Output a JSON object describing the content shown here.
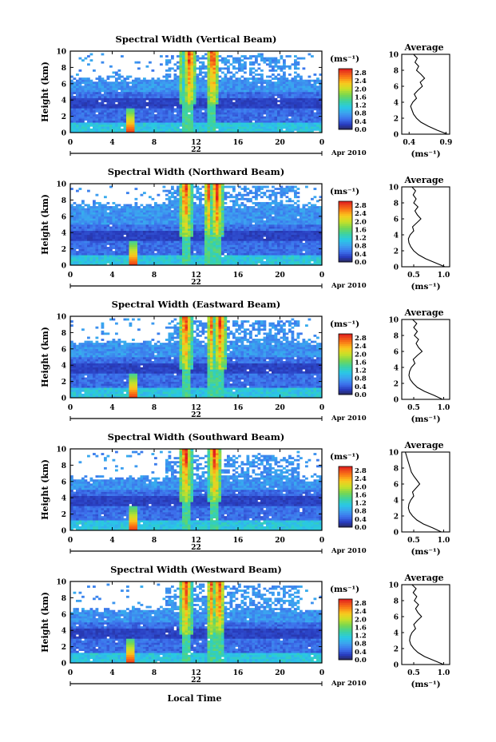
{
  "figure": {
    "date_label": "Apr 2010",
    "day_label": "22",
    "bottom_xlabel": "Local Time",
    "main_ylabel": "Height (km)",
    "colorbar_unit": "(ms⁻¹)",
    "profile_title": "Average",
    "profile_xlabel": "(ms⁻¹)"
  },
  "chart_data": [
    {
      "type": "heatmap",
      "title": "Spectral Width (Vertical Beam)",
      "xlabel": "Local Time",
      "ylabel": "Height (km)",
      "xlim": [
        0,
        24
      ],
      "ylim": [
        0,
        10
      ],
      "xticks": [
        "0",
        "4",
        "8",
        "12",
        "16",
        "20",
        "0"
      ],
      "yticks": [
        "0",
        "2",
        "4",
        "6",
        "8",
        "10"
      ],
      "colorbar": {
        "unit": "(ms⁻¹)",
        "ticks": [
          "2.8",
          "2.4",
          "2.0",
          "1.6",
          "1.2",
          "0.8",
          "0.4",
          "0.0"
        ],
        "range": [
          0,
          3.0
        ]
      },
      "features": {
        "echo_top_km": 6.6,
        "upper_band_top_km": 9.6,
        "high_width_columns_h": [
          11.0,
          11.4,
          13.6
        ],
        "low_layer_spike_h": 5.8
      },
      "profile": {
        "title": "Average",
        "xlabel": "(ms⁻¹)",
        "xticks": [
          "0.4",
          "0.9"
        ],
        "xlim": [
          0.3,
          0.95
        ],
        "yticks": [
          "0",
          "2",
          "4",
          "6",
          "8",
          "10"
        ],
        "x": [
          0.92,
          0.78,
          0.66,
          0.56,
          0.5,
          0.46,
          0.44,
          0.42,
          0.45,
          0.5,
          0.47,
          0.52,
          0.58,
          0.55,
          0.61,
          0.56,
          0.5,
          0.53,
          0.48,
          0.51,
          0.46
        ],
        "y": [
          0,
          0.5,
          1,
          1.5,
          2,
          2.5,
          3,
          3.5,
          4,
          4.5,
          5,
          5.5,
          6,
          6.5,
          7,
          7.5,
          8,
          8.5,
          9,
          9.5,
          10
        ]
      }
    },
    {
      "type": "heatmap",
      "title": "Spectral Width (Northward Beam)",
      "xlabel": "Local Time",
      "ylabel": "Height (km)",
      "xlim": [
        0,
        24
      ],
      "ylim": [
        0,
        10
      ],
      "xticks": [
        "0",
        "4",
        "8",
        "12",
        "16",
        "20",
        "0"
      ],
      "yticks": [
        "0",
        "2",
        "4",
        "6",
        "8",
        "10"
      ],
      "colorbar": {
        "unit": "(ms⁻¹)",
        "ticks": [
          "2.8",
          "2.4",
          "2.0",
          "1.6",
          "1.2",
          "0.8",
          "0.4",
          "0.0"
        ],
        "range": [
          0,
          3.0
        ]
      },
      "features": {
        "echo_top_km": 7.4,
        "upper_band_top_km": 9.8,
        "high_width_columns_h": [
          11.0,
          13.3,
          14.0
        ],
        "low_layer_spike_h": 6.0
      },
      "profile": {
        "title": "Average",
        "xlabel": "(ms⁻¹)",
        "xticks": [
          "0.5",
          "1.0"
        ],
        "xlim": [
          0.3,
          1.1
        ],
        "yticks": [
          "0",
          "2",
          "4",
          "6",
          "8",
          "10"
        ],
        "x": [
          1.02,
          0.86,
          0.7,
          0.58,
          0.5,
          0.45,
          0.42,
          0.41,
          0.44,
          0.5,
          0.48,
          0.55,
          0.62,
          0.56,
          0.52,
          0.57,
          0.5,
          0.54,
          0.49,
          0.53,
          0.47
        ],
        "y": [
          0,
          0.5,
          1,
          1.5,
          2,
          2.5,
          3,
          3.5,
          4,
          4.5,
          5,
          5.5,
          6,
          6.5,
          7,
          7.5,
          8,
          8.5,
          9,
          9.5,
          10
        ]
      }
    },
    {
      "type": "heatmap",
      "title": "Spectral Width (Eastward Beam)",
      "xlabel": "Local Time",
      "ylabel": "Height (km)",
      "xlim": [
        0,
        24
      ],
      "ylim": [
        0,
        10
      ],
      "xticks": [
        "0",
        "4",
        "8",
        "12",
        "16",
        "20",
        "0"
      ],
      "yticks": [
        "0",
        "2",
        "4",
        "6",
        "8",
        "10"
      ],
      "colorbar": {
        "unit": "(ms⁻¹)",
        "ticks": [
          "2.8",
          "2.4",
          "2.0",
          "1.6",
          "1.2",
          "0.8",
          "0.4",
          "0.0"
        ],
        "range": [
          0,
          3.0
        ]
      },
      "features": {
        "echo_top_km": 6.8,
        "upper_band_top_km": 9.6,
        "high_width_columns_h": [
          11.0,
          13.6,
          14.3
        ],
        "low_layer_spike_h": 6.0
      },
      "profile": {
        "title": "Average",
        "xlabel": "(ms⁻¹)",
        "xticks": [
          "0.5",
          "1.0"
        ],
        "xlim": [
          0.3,
          1.1
        ],
        "yticks": [
          "0",
          "2",
          "4",
          "6",
          "8",
          "10"
        ],
        "x": [
          0.98,
          0.84,
          0.68,
          0.56,
          0.49,
          0.44,
          0.42,
          0.43,
          0.46,
          0.52,
          0.49,
          0.56,
          0.64,
          0.58,
          0.54,
          0.58,
          0.51,
          0.56,
          0.5,
          0.55,
          0.48
        ],
        "y": [
          0,
          0.5,
          1,
          1.5,
          2,
          2.5,
          3,
          3.5,
          4,
          4.5,
          5,
          5.5,
          6,
          6.5,
          7,
          7.5,
          8,
          8.5,
          9,
          9.5,
          10
        ]
      }
    },
    {
      "type": "heatmap",
      "title": "Spectral Width (Southward Beam)",
      "xlabel": "Local Time",
      "ylabel": "Height (km)",
      "xlim": [
        0,
        24
      ],
      "ylim": [
        0,
        10
      ],
      "xticks": [
        "0",
        "4",
        "8",
        "12",
        "16",
        "20",
        "0"
      ],
      "yticks": [
        "0",
        "2",
        "4",
        "6",
        "8",
        "10"
      ],
      "colorbar": {
        "unit": "(ms⁻¹)",
        "ticks": [
          "2.8",
          "2.4",
          "2.0",
          "1.6",
          "1.2",
          "0.8",
          "0.4",
          "0.0"
        ],
        "range": [
          0,
          3.0
        ]
      },
      "features": {
        "echo_top_km": 6.4,
        "upper_band_top_km": 9.2,
        "high_width_columns_h": [
          11.0,
          13.8
        ],
        "low_layer_spike_h": 6.0
      },
      "profile": {
        "title": "Average",
        "xlabel": "(ms⁻¹)",
        "xticks": [
          "0.5",
          "1.0"
        ],
        "xlim": [
          0.3,
          1.1
        ],
        "yticks": [
          "0",
          "2",
          "4",
          "6",
          "8",
          "10"
        ],
        "x": [
          0.96,
          0.82,
          0.66,
          0.55,
          0.48,
          0.43,
          0.41,
          0.42,
          0.45,
          0.5,
          0.48,
          0.54,
          0.6,
          0.55,
          0.5,
          0.46,
          0.44,
          0.42,
          0.4,
          0.38,
          0.36
        ],
        "y": [
          0,
          0.5,
          1,
          1.5,
          2,
          2.5,
          3,
          3.5,
          4,
          4.5,
          5,
          5.5,
          6,
          6.5,
          7,
          7.5,
          8,
          8.5,
          9,
          9.5,
          10
        ]
      }
    },
    {
      "type": "heatmap",
      "title": "Spectral Width (Westward Beam)",
      "xlabel": "Local Time",
      "ylabel": "Height (km)",
      "xlim": [
        0,
        24
      ],
      "ylim": [
        0,
        10
      ],
      "xticks": [
        "0",
        "4",
        "8",
        "12",
        "16",
        "20",
        "0"
      ],
      "yticks": [
        "0",
        "2",
        "4",
        "6",
        "8",
        "10"
      ],
      "colorbar": {
        "unit": "(ms⁻¹)",
        "ticks": [
          "2.8",
          "2.4",
          "2.0",
          "1.6",
          "1.2",
          "0.8",
          "0.4",
          "0.0"
        ],
        "range": [
          0,
          3.0
        ]
      },
      "features": {
        "echo_top_km": 6.6,
        "upper_band_top_km": 9.6,
        "high_width_columns_h": [
          11.0,
          13.6,
          14.2
        ],
        "low_layer_spike_h": 5.8
      },
      "profile": {
        "title": "Average",
        "xlabel": "(ms⁻¹)",
        "xticks": [
          "0.5",
          "1.0"
        ],
        "xlim": [
          0.3,
          1.1
        ],
        "yticks": [
          "0",
          "2",
          "4",
          "6",
          "8",
          "10"
        ],
        "x": [
          1.0,
          0.84,
          0.68,
          0.57,
          0.5,
          0.45,
          0.43,
          0.44,
          0.47,
          0.53,
          0.5,
          0.56,
          0.63,
          0.57,
          0.53,
          0.58,
          0.51,
          0.55,
          0.49,
          0.54,
          0.47
        ],
        "y": [
          0,
          0.5,
          1,
          1.5,
          2,
          2.5,
          3,
          3.5,
          4,
          4.5,
          5,
          5.5,
          6,
          6.5,
          7,
          7.5,
          8,
          8.5,
          9,
          9.5,
          10
        ]
      }
    }
  ]
}
